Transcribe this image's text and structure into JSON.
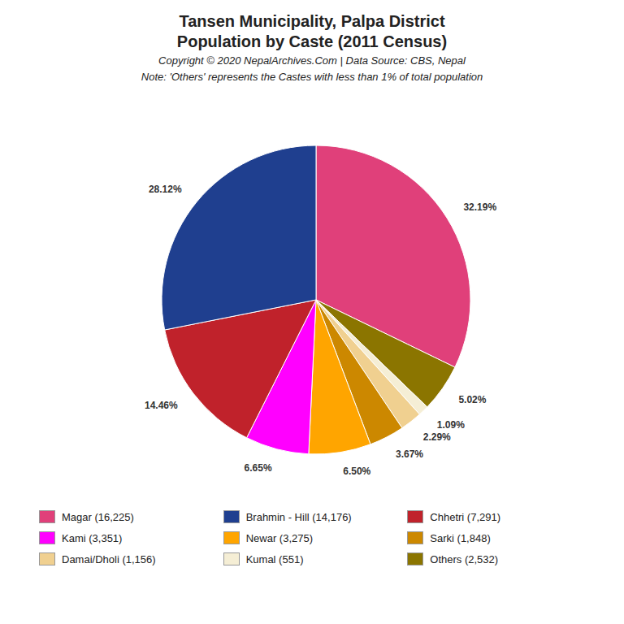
{
  "chart_data": {
    "type": "pie",
    "title": "Tansen Municipality, Palpa District",
    "subtitle": "Population by Caste (2011 Census)",
    "annotations": [
      "Copyright © 2020 NepalArchives.Com | Data Source: CBS, Nepal",
      "Note: 'Others' represents the Castes with less than 1% of total population"
    ],
    "categories": [
      "Magar",
      "Others",
      "Kumal",
      "Damai/Dholi",
      "Sarki",
      "Newar",
      "Kami",
      "Chhetri",
      "Brahmin - Hill"
    ],
    "values": [
      32.19,
      5.02,
      1.09,
      2.29,
      3.67,
      6.5,
      6.65,
      14.46,
      28.12
    ],
    "value_labels": [
      "32.19%",
      "5.02%",
      "1.09%",
      "2.29%",
      "3.67%",
      "6.50%",
      "6.65%",
      "14.46%",
      "28.12%"
    ],
    "colors": [
      "#E0407A",
      "#8B7500",
      "#F5EED5",
      "#F0D090",
      "#CC8800",
      "#FFA500",
      "#FF00FF",
      "#C0222B",
      "#1F3F8F"
    ],
    "data_labels": true,
    "legend": "bottom",
    "legend_entries": [
      {
        "label": "Magar (16,225)",
        "value": 16225,
        "color": "#E0407A"
      },
      {
        "label": "Brahmin - Hill (14,176)",
        "value": 14176,
        "color": "#1F3F8F"
      },
      {
        "label": "Chhetri (7,291)",
        "value": 7291,
        "color": "#C0222B"
      },
      {
        "label": "Kami (3,351)",
        "value": 3351,
        "color": "#FF00FF"
      },
      {
        "label": "Newar (3,275)",
        "value": 3275,
        "color": "#FFA500"
      },
      {
        "label": "Sarki (1,848)",
        "value": 1848,
        "color": "#CC8800"
      },
      {
        "label": "Damai/Dholi (1,156)",
        "value": 1156,
        "color": "#F0D090"
      },
      {
        "label": "Kumal (551)",
        "value": 551,
        "color": "#F5EED5"
      },
      {
        "label": "Others (2,532)",
        "value": 2532,
        "color": "#8B7500"
      }
    ]
  }
}
